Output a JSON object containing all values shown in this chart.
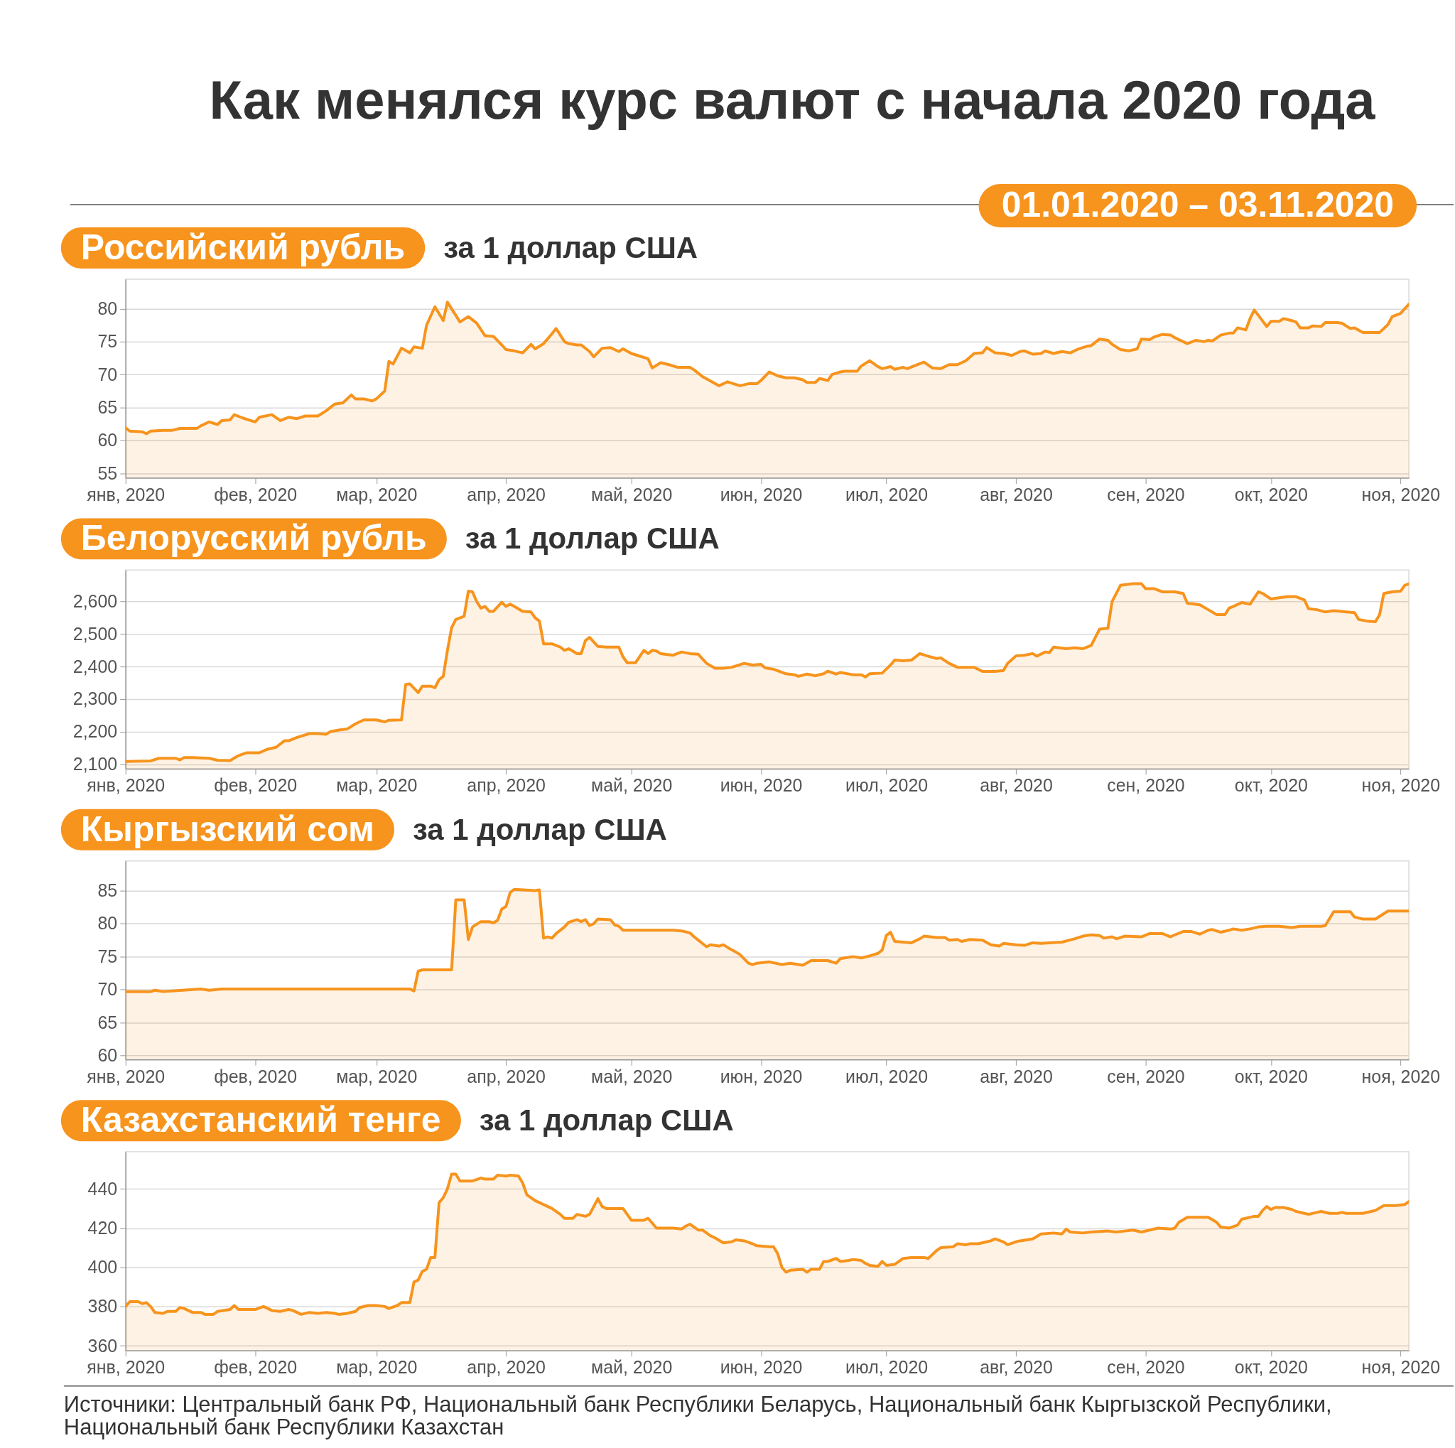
{
  "chart_data": [
    {
      "type": "area",
      "title": "Российский рубль",
      "subtitle": "за 1 доллар США",
      "annotations": [
        "Как менялся курс валют с начала 2020 года",
        "01.01.2020 – 03.11.2020"
      ],
      "x": [
        "2020-01-01",
        "2020-01-02",
        "2020-01-05",
        "2020-01-06",
        "2020-01-07",
        "2020-01-10",
        "2020-01-12",
        "2020-01-14",
        "2020-01-18",
        "2020-01-19",
        "2020-01-21",
        "2020-01-23",
        "2020-01-24",
        "2020-01-26",
        "2020-01-27",
        "2020-01-29",
        "2020-02-01",
        "2020-02-02",
        "2020-02-05",
        "2020-02-07",
        "2020-02-09",
        "2020-02-11",
        "2020-02-13",
        "2020-02-16",
        "2020-02-18",
        "2020-02-20",
        "2020-02-22",
        "2020-02-24",
        "2020-02-25",
        "2020-02-27",
        "2020-02-29",
        "2020-03-01",
        "2020-03-03",
        "2020-03-04",
        "2020-03-05",
        "2020-03-07",
        "2020-03-09",
        "2020-03-10",
        "2020-03-12",
        "2020-03-13",
        "2020-03-15",
        "2020-03-17",
        "2020-03-18",
        "2020-03-20",
        "2020-03-21",
        "2020-03-23",
        "2020-03-25",
        "2020-03-27",
        "2020-03-29",
        "2020-03-31",
        "2020-04-01",
        "2020-04-03",
        "2020-04-05",
        "2020-04-07",
        "2020-04-08",
        "2020-04-10",
        "2020-04-12",
        "2020-04-13",
        "2020-04-15",
        "2020-04-16",
        "2020-04-18",
        "2020-04-19",
        "2020-04-21",
        "2020-04-22",
        "2020-04-24",
        "2020-04-26",
        "2020-04-28",
        "2020-04-29",
        "2020-05-01",
        "2020-05-03",
        "2020-05-05",
        "2020-05-06",
        "2020-05-08",
        "2020-05-10",
        "2020-05-12",
        "2020-05-15",
        "2020-05-16",
        "2020-05-18",
        "2020-05-20",
        "2020-05-22",
        "2020-05-24",
        "2020-05-26",
        "2020-05-27",
        "2020-05-29",
        "2020-05-31",
        "2020-06-01",
        "2020-06-03",
        "2020-06-05",
        "2020-06-07",
        "2020-06-09",
        "2020-06-11",
        "2020-06-12",
        "2020-06-14",
        "2020-06-15",
        "2020-06-17",
        "2020-06-18",
        "2020-06-20",
        "2020-06-21",
        "2020-06-24",
        "2020-06-25",
        "2020-06-27",
        "2020-06-29",
        "2020-06-30",
        "2020-07-02",
        "2020-07-03",
        "2020-07-05",
        "2020-07-06",
        "2020-07-08",
        "2020-07-10",
        "2020-07-12",
        "2020-07-14",
        "2020-07-16",
        "2020-07-18",
        "2020-07-20",
        "2020-07-22",
        "2020-07-24",
        "2020-07-25",
        "2020-07-27",
        "2020-07-29",
        "2020-07-31",
        "2020-08-02",
        "2020-08-03",
        "2020-08-05",
        "2020-08-07",
        "2020-08-08",
        "2020-08-10",
        "2020-08-12",
        "2020-08-14",
        "2020-08-16",
        "2020-08-18",
        "2020-08-19",
        "2020-08-21",
        "2020-08-23",
        "2020-08-24",
        "2020-08-26",
        "2020-08-28",
        "2020-08-30",
        "2020-08-31",
        "2020-09-02",
        "2020-09-03",
        "2020-09-05",
        "2020-09-07",
        "2020-09-08",
        "2020-09-10",
        "2020-09-11",
        "2020-09-13",
        "2020-09-15",
        "2020-09-16",
        "2020-09-17",
        "2020-09-19",
        "2020-09-21",
        "2020-09-22",
        "2020-09-23",
        "2020-09-25",
        "2020-09-26",
        "2020-09-27",
        "2020-09-28",
        "2020-09-30",
        "2020-10-01",
        "2020-10-03",
        "2020-10-04",
        "2020-10-06",
        "2020-10-07",
        "2020-10-08",
        "2020-10-10",
        "2020-10-11",
        "2020-10-13",
        "2020-10-14",
        "2020-10-17",
        "2020-10-18",
        "2020-10-20",
        "2020-10-21",
        "2020-10-23",
        "2020-10-27",
        "2020-10-29",
        "2020-10-30",
        "2020-11-01",
        "2020-11-03"
      ],
      "values": [
        61.9,
        61.4,
        61.3,
        61.0,
        61.4,
        61.5,
        61.5,
        61.8,
        61.8,
        62.2,
        62.8,
        62.4,
        63.0,
        63.1,
        63.9,
        63.4,
        62.8,
        63.5,
        63.9,
        63.0,
        63.5,
        63.3,
        63.7,
        63.7,
        64.5,
        65.5,
        65.7,
        66.9,
        66.3,
        66.3,
        66.0,
        66.3,
        67.5,
        72.0,
        71.6,
        74.0,
        73.3,
        74.2,
        74.0,
        77.5,
        80.3,
        78.2,
        81.0,
        79.0,
        78.0,
        78.8,
        77.8,
        75.9,
        75.8,
        74.5,
        73.8,
        73.6,
        73.3,
        74.6,
        73.9,
        74.7,
        76.2,
        77.0,
        75.0,
        74.7,
        74.5,
        74.5,
        73.5,
        72.7,
        74.0,
        74.1,
        73.5,
        73.9,
        73.2,
        72.8,
        72.4,
        71.0,
        71.8,
        71.5,
        71.1,
        71.1,
        70.7,
        69.7,
        69.0,
        68.3,
        68.9,
        68.5,
        68.3,
        68.6,
        68.6,
        69.1,
        70.4,
        69.8,
        69.5,
        69.5,
        69.2,
        68.8,
        68.8,
        69.4,
        69.1,
        70.0,
        70.4,
        70.5,
        70.5,
        71.3,
        72.1,
        71.2,
        70.9,
        71.2,
        70.8,
        71.1,
        70.9,
        71.4,
        71.9,
        71.0,
        70.9,
        71.5,
        71.5,
        72.1,
        73.2,
        73.3,
        74.1,
        73.3,
        73.2,
        72.9,
        73.5,
        73.6,
        73.1,
        73.2,
        73.6,
        73.2,
        73.5,
        73.3,
        73.9,
        74.3,
        74.4,
        75.4,
        75.2,
        74.6,
        73.8,
        73.6,
        73.9,
        75.4,
        75.3,
        75.7,
        76.1,
        76.0,
        75.6,
        75.0,
        74.7,
        75.2,
        75.0,
        75.2,
        75.1,
        76.0,
        76.3,
        76.3,
        77.1,
        76.8,
        78.5,
        79.8,
        79.0,
        77.3,
        78.1,
        78.1,
        78.5,
        78.2,
        78.0,
        77.1,
        77.1,
        77.4,
        77.3,
        77.9,
        77.9,
        77.8,
        77.0,
        77.1,
        76.4,
        76.4,
        77.6,
        78.8,
        79.3,
        80.7
      ],
      "color": "#f7941d",
      "grid": "y",
      "xlim": [
        "2020-01-01",
        "2020-11-03"
      ],
      "xticks": [
        {
          "value": "2020-01-01",
          "label": "янв, 2020"
        },
        {
          "value": "2020-02-01",
          "label": "фев, 2020"
        },
        {
          "value": "2020-03-01",
          "label": "мар, 2020"
        },
        {
          "value": "2020-04-01",
          "label": "апр, 2020"
        },
        {
          "value": "2020-05-01",
          "label": "май, 2020"
        },
        {
          "value": "2020-06-01",
          "label": "июн, 2020"
        },
        {
          "value": "2020-07-01",
          "label": "июл, 2020"
        },
        {
          "value": "2020-08-01",
          "label": "авг, 2020"
        },
        {
          "value": "2020-09-01",
          "label": "сен, 2020"
        },
        {
          "value": "2020-10-01",
          "label": "окт, 2020"
        },
        {
          "value": "2020-11-01",
          "label": "ноя, 2020"
        }
      ],
      "ylim": [
        54.3,
        84.5
      ],
      "yticks": [
        55,
        60,
        65,
        70,
        75,
        80
      ]
    },
    {
      "type": "area",
      "title": "Белорусский рубль",
      "subtitle": "за 1 доллар США",
      "x": [
        "2020-01-01",
        "2020-01-07",
        "2020-01-09",
        "2020-01-13",
        "2020-01-14",
        "2020-01-15",
        "2020-01-17",
        "2020-01-21",
        "2020-01-23",
        "2020-01-26",
        "2020-01-28",
        "2020-01-30",
        "2020-02-02",
        "2020-02-04",
        "2020-02-06",
        "2020-02-08",
        "2020-02-09",
        "2020-02-11",
        "2020-02-12",
        "2020-02-14",
        "2020-02-16",
        "2020-02-18",
        "2020-02-19",
        "2020-02-21",
        "2020-02-23",
        "2020-02-25",
        "2020-02-26",
        "2020-02-27",
        "2020-03-01",
        "2020-03-03",
        "2020-03-04",
        "2020-03-07",
        "2020-03-08",
        "2020-03-09",
        "2020-03-11",
        "2020-03-12",
        "2020-03-14",
        "2020-03-15",
        "2020-03-16",
        "2020-03-17",
        "2020-03-18",
        "2020-03-19",
        "2020-03-20",
        "2020-03-22",
        "2020-03-23",
        "2020-03-24",
        "2020-03-25",
        "2020-03-26",
        "2020-03-27",
        "2020-03-28",
        "2020-03-29",
        "2020-03-31",
        "2020-04-01",
        "2020-04-02",
        "2020-04-03",
        "2020-04-05",
        "2020-04-07",
        "2020-04-08",
        "2020-04-09",
        "2020-04-10",
        "2020-04-12",
        "2020-04-14",
        "2020-04-15",
        "2020-04-16",
        "2020-04-18",
        "2020-04-19",
        "2020-04-20",
        "2020-04-21",
        "2020-04-23",
        "2020-04-25",
        "2020-04-28",
        "2020-04-29",
        "2020-04-30",
        "2020-05-02",
        "2020-05-04",
        "2020-05-05",
        "2020-05-06",
        "2020-05-07",
        "2020-05-08",
        "2020-05-11",
        "2020-05-13",
        "2020-05-15",
        "2020-05-17",
        "2020-05-19",
        "2020-05-21",
        "2020-05-23",
        "2020-05-25",
        "2020-05-28",
        "2020-05-30",
        "2020-06-01",
        "2020-06-02",
        "2020-06-04",
        "2020-06-07",
        "2020-06-09",
        "2020-06-10",
        "2020-06-12",
        "2020-06-14",
        "2020-06-16",
        "2020-06-17",
        "2020-06-19",
        "2020-06-20",
        "2020-06-23",
        "2020-06-25",
        "2020-06-26",
        "2020-06-27",
        "2020-06-30",
        "2020-07-02",
        "2020-07-03",
        "2020-07-05",
        "2020-07-07",
        "2020-07-09",
        "2020-07-11",
        "2020-07-13",
        "2020-07-14",
        "2020-07-16",
        "2020-07-18",
        "2020-07-22",
        "2020-07-24",
        "2020-07-27",
        "2020-07-29",
        "2020-07-30",
        "2020-08-01",
        "2020-08-03",
        "2020-08-05",
        "2020-08-06",
        "2020-08-08",
        "2020-08-09",
        "2020-08-10",
        "2020-08-13",
        "2020-08-15",
        "2020-08-17",
        "2020-08-19",
        "2020-08-21",
        "2020-08-23",
        "2020-08-24",
        "2020-08-26",
        "2020-08-29",
        "2020-08-31",
        "2020-09-01",
        "2020-09-03",
        "2020-09-05",
        "2020-09-08",
        "2020-09-10",
        "2020-09-11",
        "2020-09-14",
        "2020-09-16",
        "2020-09-18",
        "2020-09-20",
        "2020-09-21",
        "2020-09-22",
        "2020-09-24",
        "2020-09-26",
        "2020-09-28",
        "2020-09-29",
        "2020-10-01",
        "2020-10-03",
        "2020-10-05",
        "2020-10-07",
        "2020-10-09",
        "2020-10-10",
        "2020-10-12",
        "2020-10-14",
        "2020-10-16",
        "2020-10-19",
        "2020-10-21",
        "2020-10-22",
        "2020-10-24",
        "2020-10-26",
        "2020-10-27",
        "2020-10-28",
        "2020-10-30",
        "2020-11-01",
        "2020-11-02",
        "2020-11-03"
      ],
      "values": [
        2108,
        2110,
        2118,
        2118,
        2113,
        2120,
        2120,
        2118,
        2112,
        2111,
        2126,
        2135,
        2135,
        2146,
        2152,
        2172,
        2172,
        2182,
        2186,
        2194,
        2194,
        2192,
        2200,
        2205,
        2208,
        2224,
        2230,
        2236,
        2236,
        2230,
        2235,
        2236,
        2345,
        2347,
        2320,
        2340,
        2340,
        2335,
        2360,
        2370,
        2450,
        2520,
        2545,
        2555,
        2632,
        2630,
        2600,
        2580,
        2585,
        2570,
        2570,
        2598,
        2585,
        2592,
        2585,
        2570,
        2568,
        2550,
        2540,
        2470,
        2470,
        2460,
        2450,
        2455,
        2440,
        2440,
        2480,
        2490,
        2462,
        2460,
        2460,
        2430,
        2412,
        2412,
        2450,
        2440,
        2450,
        2448,
        2440,
        2435,
        2445,
        2440,
        2438,
        2410,
        2395,
        2395,
        2398,
        2410,
        2405,
        2407,
        2396,
        2392,
        2378,
        2375,
        2370,
        2377,
        2372,
        2378,
        2386,
        2377,
        2382,
        2375,
        2375,
        2368,
        2378,
        2380,
        2405,
        2420,
        2418,
        2420,
        2440,
        2432,
        2425,
        2427,
        2410,
        2398,
        2398,
        2385,
        2385,
        2388,
        2410,
        2433,
        2435,
        2440,
        2432,
        2445,
        2443,
        2460,
        2455,
        2458,
        2455,
        2465,
        2515,
        2518,
        2600,
        2650,
        2655,
        2655,
        2640,
        2640,
        2630,
        2630,
        2625,
        2595,
        2590,
        2575,
        2560,
        2560,
        2580,
        2585,
        2597,
        2592,
        2630,
        2625,
        2608,
        2612,
        2615,
        2615,
        2605,
        2578,
        2575,
        2568,
        2572,
        2568,
        2566,
        2545,
        2540,
        2538,
        2560,
        2625,
        2630,
        2632,
        2650,
        2655
      ],
      "color": "#f7941d",
      "grid": "y",
      "xlim": [
        "2020-01-01",
        "2020-11-03"
      ],
      "xticks": [
        {
          "value": "2020-01-01",
          "label": "янв, 2020"
        },
        {
          "value": "2020-02-01",
          "label": "фев, 2020"
        },
        {
          "value": "2020-03-01",
          "label": "мар, 2020"
        },
        {
          "value": "2020-04-01",
          "label": "апр, 2020"
        },
        {
          "value": "2020-05-01",
          "label": "май, 2020"
        },
        {
          "value": "2020-06-01",
          "label": "июн, 2020"
        },
        {
          "value": "2020-07-01",
          "label": "июл, 2020"
        },
        {
          "value": "2020-08-01",
          "label": "авг, 2020"
        },
        {
          "value": "2020-09-01",
          "label": "сен, 2020"
        },
        {
          "value": "2020-10-01",
          "label": "окт, 2020"
        },
        {
          "value": "2020-11-01",
          "label": "ноя, 2020"
        }
      ],
      "ylim": [
        2086,
        2697
      ],
      "yticks": [
        {
          "value": 2100,
          "label": "2,100"
        },
        {
          "value": 2200,
          "label": "2,200"
        },
        {
          "value": 2300,
          "label": "2,300"
        },
        {
          "value": 2400,
          "label": "2,400"
        },
        {
          "value": 2500,
          "label": "2,500"
        },
        {
          "value": 2600,
          "label": "2,600"
        }
      ]
    },
    {
      "type": "area",
      "title": "Кыргызский сом",
      "subtitle": "за 1 доллар США",
      "x": [
        "2020-01-01",
        "2020-01-07",
        "2020-01-08",
        "2020-01-10",
        "2020-01-17",
        "2020-01-19",
        "2020-01-21",
        "2020-01-24",
        "2020-03-09",
        "2020-03-10",
        "2020-03-11",
        "2020-03-12",
        "2020-03-19",
        "2020-03-20",
        "2020-03-22",
        "2020-03-23",
        "2020-03-24",
        "2020-03-26",
        "2020-03-28",
        "2020-03-29",
        "2020-03-30",
        "2020-03-31",
        "2020-04-01",
        "2020-04-02",
        "2020-04-03",
        "2020-04-08",
        "2020-04-09",
        "2020-04-10",
        "2020-04-11",
        "2020-04-12",
        "2020-04-13",
        "2020-04-15",
        "2020-04-16",
        "2020-04-18",
        "2020-04-19",
        "2020-04-20",
        "2020-04-21",
        "2020-04-22",
        "2020-04-23",
        "2020-04-26",
        "2020-04-27",
        "2020-04-28",
        "2020-04-29",
        "2020-05-11",
        "2020-05-13",
        "2020-05-15",
        "2020-05-16",
        "2020-05-17",
        "2020-05-19",
        "2020-05-20",
        "2020-05-22",
        "2020-05-23",
        "2020-05-24",
        "2020-05-26",
        "2020-05-27",
        "2020-05-29",
        "2020-05-30",
        "2020-05-31",
        "2020-06-03",
        "2020-06-06",
        "2020-06-08",
        "2020-06-11",
        "2020-06-13",
        "2020-06-17",
        "2020-06-19",
        "2020-06-20",
        "2020-06-23",
        "2020-06-25",
        "2020-06-27",
        "2020-06-29",
        "2020-06-30",
        "2020-07-01",
        "2020-07-02",
        "2020-07-03",
        "2020-07-05",
        "2020-07-07",
        "2020-07-09",
        "2020-07-10",
        "2020-07-13",
        "2020-07-15",
        "2020-07-16",
        "2020-07-18",
        "2020-07-19",
        "2020-07-21",
        "2020-07-24",
        "2020-07-26",
        "2020-07-28",
        "2020-07-29",
        "2020-08-01",
        "2020-08-03",
        "2020-08-05",
        "2020-08-07",
        "2020-08-09",
        "2020-08-12",
        "2020-08-15",
        "2020-08-17",
        "2020-08-19",
        "2020-08-21",
        "2020-08-22",
        "2020-08-24",
        "2020-08-25",
        "2020-08-27",
        "2020-08-31",
        "2020-09-02",
        "2020-09-05",
        "2020-09-07",
        "2020-09-08",
        "2020-09-10",
        "2020-09-12",
        "2020-09-14",
        "2020-09-16",
        "2020-09-17",
        "2020-09-19",
        "2020-09-21",
        "2020-09-22",
        "2020-09-24",
        "2020-09-26",
        "2020-09-28",
        "2020-09-30",
        "2020-10-03",
        "2020-10-06",
        "2020-10-08",
        "2020-10-13",
        "2020-10-14",
        "2020-10-16",
        "2020-10-20",
        "2020-10-21",
        "2020-10-23",
        "2020-10-26",
        "2020-10-29",
        "2020-11-03"
      ],
      "values": [
        69.7,
        69.7,
        69.9,
        69.7,
        70.0,
        70.1,
        69.9,
        70.1,
        70.1,
        69.8,
        72.8,
        73.0,
        73.0,
        83.6,
        83.6,
        77.6,
        79.5,
        80.3,
        80.3,
        80.1,
        80.5,
        82.2,
        82.6,
        84.7,
        85.2,
        85.0,
        85.1,
        77.8,
        78.0,
        77.8,
        78.5,
        79.5,
        80.2,
        80.6,
        80.3,
        80.6,
        79.7,
        80.0,
        80.7,
        80.6,
        79.8,
        79.6,
        79.0,
        79.0,
        78.9,
        78.6,
        78.0,
        77.5,
        76.5,
        76.8,
        76.6,
        76.8,
        76.4,
        75.7,
        75.3,
        74.0,
        73.8,
        74.0,
        74.2,
        73.8,
        74.0,
        73.7,
        74.4,
        74.4,
        74.0,
        74.7,
        75.0,
        74.8,
        75.1,
        75.5,
        76.0,
        78.2,
        78.7,
        77.3,
        77.2,
        77.1,
        77.7,
        78.1,
        77.9,
        77.9,
        77.5,
        77.6,
        77.3,
        77.6,
        77.5,
        76.8,
        76.6,
        77.0,
        76.8,
        76.7,
        77.1,
        77.0,
        77.1,
        77.2,
        77.7,
        78.1,
        78.3,
        78.2,
        77.8,
        78.0,
        77.7,
        78.1,
        78.0,
        78.5,
        78.5,
        78.0,
        78.3,
        78.8,
        78.8,
        78.4,
        79.0,
        79.1,
        78.7,
        79.0,
        79.2,
        79.0,
        79.2,
        79.5,
        79.6,
        79.6,
        79.4,
        79.6,
        79.6,
        79.7,
        81.8,
        81.8,
        81.0,
        80.7,
        80.7,
        81.9,
        81.9
      ],
      "color": "#f7941d",
      "grid": "y",
      "xlim": [
        "2020-01-01",
        "2020-11-03"
      ],
      "xticks": [
        {
          "value": "2020-01-01",
          "label": "янв, 2020"
        },
        {
          "value": "2020-02-01",
          "label": "фев, 2020"
        },
        {
          "value": "2020-03-01",
          "label": "мар, 2020"
        },
        {
          "value": "2020-04-01",
          "label": "апр, 2020"
        },
        {
          "value": "2020-05-01",
          "label": "май, 2020"
        },
        {
          "value": "2020-06-01",
          "label": "июн, 2020"
        },
        {
          "value": "2020-07-01",
          "label": "июл, 2020"
        },
        {
          "value": "2020-08-01",
          "label": "авг, 2020"
        },
        {
          "value": "2020-09-01",
          "label": "сен, 2020"
        },
        {
          "value": "2020-10-01",
          "label": "окт, 2020"
        },
        {
          "value": "2020-11-01",
          "label": "ноя, 2020"
        }
      ],
      "ylim": [
        59.4,
        89.5
      ],
      "yticks": [
        60,
        65,
        70,
        75,
        80,
        85
      ]
    },
    {
      "type": "area",
      "title": "Казахстанский тенге",
      "subtitle": "за 1 доллар США",
      "annotations": [
        "Источники: Центральный банк РФ, Национальный банк Республики Беларусь, Национальный банк Кыргызской Республики, Национальный банк Республики Казахстан"
      ],
      "x": [
        "2020-01-01",
        "2020-01-02",
        "2020-01-04",
        "2020-01-05",
        "2020-01-06",
        "2020-01-07",
        "2020-01-08",
        "2020-01-10",
        "2020-01-11",
        "2020-01-13",
        "2020-01-14",
        "2020-01-15",
        "2020-01-17",
        "2020-01-19",
        "2020-01-20",
        "2020-01-22",
        "2020-01-23",
        "2020-01-26",
        "2020-01-27",
        "2020-01-28",
        "2020-01-31",
        "2020-02-01",
        "2020-02-03",
        "2020-02-05",
        "2020-02-07",
        "2020-02-09",
        "2020-02-10",
        "2020-02-12",
        "2020-02-14",
        "2020-02-16",
        "2020-02-18",
        "2020-02-20",
        "2020-02-21",
        "2020-02-23",
        "2020-02-25",
        "2020-02-26",
        "2020-02-28",
        "2020-03-01",
        "2020-03-03",
        "2020-03-04",
        "2020-03-06",
        "2020-03-07",
        "2020-03-09",
        "2020-03-10",
        "2020-03-11",
        "2020-03-12",
        "2020-03-13",
        "2020-03-14",
        "2020-03-15",
        "2020-03-16",
        "2020-03-17",
        "2020-03-18",
        "2020-03-19",
        "2020-03-20",
        "2020-03-21",
        "2020-03-24",
        "2020-03-26",
        "2020-03-27",
        "2020-03-29",
        "2020-03-30",
        "2020-04-01",
        "2020-04-02",
        "2020-04-04",
        "2020-04-05",
        "2020-04-06",
        "2020-04-08",
        "2020-04-10",
        "2020-04-12",
        "2020-04-14",
        "2020-04-15",
        "2020-04-17",
        "2020-04-18",
        "2020-04-20",
        "2020-04-21",
        "2020-04-22",
        "2020-04-23",
        "2020-04-24",
        "2020-04-25",
        "2020-04-28",
        "2020-04-29",
        "2020-04-30",
        "2020-05-01",
        "2020-05-04",
        "2020-05-05",
        "2020-05-06",
        "2020-05-07",
        "2020-05-11",
        "2020-05-13",
        "2020-05-14",
        "2020-05-15",
        "2020-05-17",
        "2020-05-18",
        "2020-05-20",
        "2020-05-21",
        "2020-05-23",
        "2020-05-25",
        "2020-05-26",
        "2020-05-28",
        "2020-05-30",
        "2020-05-31",
        "2020-06-03",
        "2020-06-04",
        "2020-06-05",
        "2020-06-06",
        "2020-06-07",
        "2020-06-08",
        "2020-06-11",
        "2020-06-12",
        "2020-06-13",
        "2020-06-15",
        "2020-06-16",
        "2020-06-17",
        "2020-06-19",
        "2020-06-20",
        "2020-06-22",
        "2020-06-23",
        "2020-06-25",
        "2020-06-26",
        "2020-06-27",
        "2020-06-29",
        "2020-06-30",
        "2020-07-01",
        "2020-07-03",
        "2020-07-04",
        "2020-07-05",
        "2020-07-07",
        "2020-07-10",
        "2020-07-11",
        "2020-07-13",
        "2020-07-14",
        "2020-07-17",
        "2020-07-18",
        "2020-07-20",
        "2020-07-21",
        "2020-07-23",
        "2020-07-25",
        "2020-07-26",
        "2020-07-27",
        "2020-07-29",
        "2020-07-30",
        "2020-08-01",
        "2020-08-02",
        "2020-08-05",
        "2020-08-07",
        "2020-08-10",
        "2020-08-12",
        "2020-08-13",
        "2020-08-14",
        "2020-08-17",
        "2020-08-19",
        "2020-08-23",
        "2020-08-25",
        "2020-08-27",
        "2020-08-29",
        "2020-08-31",
        "2020-09-02",
        "2020-09-04",
        "2020-09-07",
        "2020-09-08",
        "2020-09-09",
        "2020-09-11",
        "2020-09-16",
        "2020-09-18",
        "2020-09-19",
        "2020-09-21",
        "2020-09-23",
        "2020-09-24",
        "2020-09-27",
        "2020-09-28",
        "2020-09-29",
        "2020-09-30",
        "2020-10-01",
        "2020-10-02",
        "2020-10-04",
        "2020-10-06",
        "2020-10-07",
        "2020-10-09",
        "2020-10-10",
        "2020-10-12",
        "2020-10-13",
        "2020-10-15",
        "2020-10-17",
        "2020-10-18",
        "2020-10-19",
        "2020-10-23",
        "2020-10-25",
        "2020-10-26",
        "2020-10-28",
        "2020-10-31",
        "2020-11-02",
        "2020-11-03"
      ],
      "values": [
        380,
        382.5,
        382.5,
        381.5,
        382,
        380,
        377,
        376.5,
        377.5,
        377.5,
        379.5,
        379,
        377,
        377,
        376,
        376,
        377.5,
        378.5,
        380.5,
        378.5,
        378.5,
        378.5,
        380,
        378,
        377.5,
        378.5,
        378,
        376,
        377,
        376.5,
        377,
        376.5,
        376,
        376.5,
        377.5,
        379.5,
        380.5,
        380.5,
        380,
        379,
        380.5,
        382,
        382,
        392.5,
        393.5,
        398,
        399,
        405,
        405,
        433,
        435.5,
        440,
        447.5,
        447.5,
        444,
        444,
        445.5,
        445,
        445,
        447,
        446.5,
        447,
        446.5,
        443,
        437,
        434,
        432,
        430,
        427,
        425,
        425,
        427,
        426,
        427,
        431,
        435,
        431,
        430,
        430,
        430,
        427,
        424,
        424,
        425,
        422.5,
        420,
        420,
        419.5,
        421,
        422,
        419,
        419,
        416,
        415,
        412.5,
        413,
        414,
        413.5,
        412,
        411,
        410.5,
        410.5,
        407,
        400,
        397.5,
        398.5,
        399,
        397.5,
        399,
        399,
        403,
        403,
        404.5,
        403,
        403.5,
        404,
        403.5,
        402,
        401,
        400.5,
        403,
        401,
        401.5,
        403,
        404.5,
        405,
        405,
        404.5,
        408.5,
        410,
        410.5,
        412,
        411.5,
        412,
        412,
        413,
        413.5,
        414.5,
        413,
        411.5,
        413,
        413.5,
        414.5,
        417,
        417.5,
        417,
        419.5,
        418,
        417.5,
        418,
        418.5,
        418,
        418.5,
        419,
        418,
        419,
        420,
        419.5,
        420,
        423,
        425.5,
        425.5,
        423,
        420.5,
        420,
        421.5,
        424.5,
        426,
        426,
        429,
        431,
        429.5,
        430.5,
        430.5,
        429.5,
        428.5,
        427.5,
        427,
        428,
        428.5,
        427.5,
        427.5,
        428,
        427.5,
        427.5,
        428.5,
        429,
        431.5,
        431.5,
        432,
        433.5
      ],
      "color": "#f7941d",
      "grid": "y",
      "xlim": [
        "2020-01-01",
        "2020-11-03"
      ],
      "xticks": [
        {
          "value": "2020-01-01",
          "label": "янв, 2020"
        },
        {
          "value": "2020-02-01",
          "label": "фев, 2020"
        },
        {
          "value": "2020-03-01",
          "label": "мар, 2020"
        },
        {
          "value": "2020-04-01",
          "label": "апр, 2020"
        },
        {
          "value": "2020-05-01",
          "label": "май, 2020"
        },
        {
          "value": "2020-06-01",
          "label": "июн, 2020"
        },
        {
          "value": "2020-07-01",
          "label": "июл, 2020"
        },
        {
          "value": "2020-08-01",
          "label": "авг, 2020"
        },
        {
          "value": "2020-09-01",
          "label": "сен, 2020"
        },
        {
          "value": "2020-10-01",
          "label": "окт, 2020"
        },
        {
          "value": "2020-11-01",
          "label": "ноя, 2020"
        }
      ],
      "ylim": [
        357.6,
        458.9
      ],
      "yticks": [
        360,
        380,
        400,
        420,
        440
      ]
    }
  ]
}
